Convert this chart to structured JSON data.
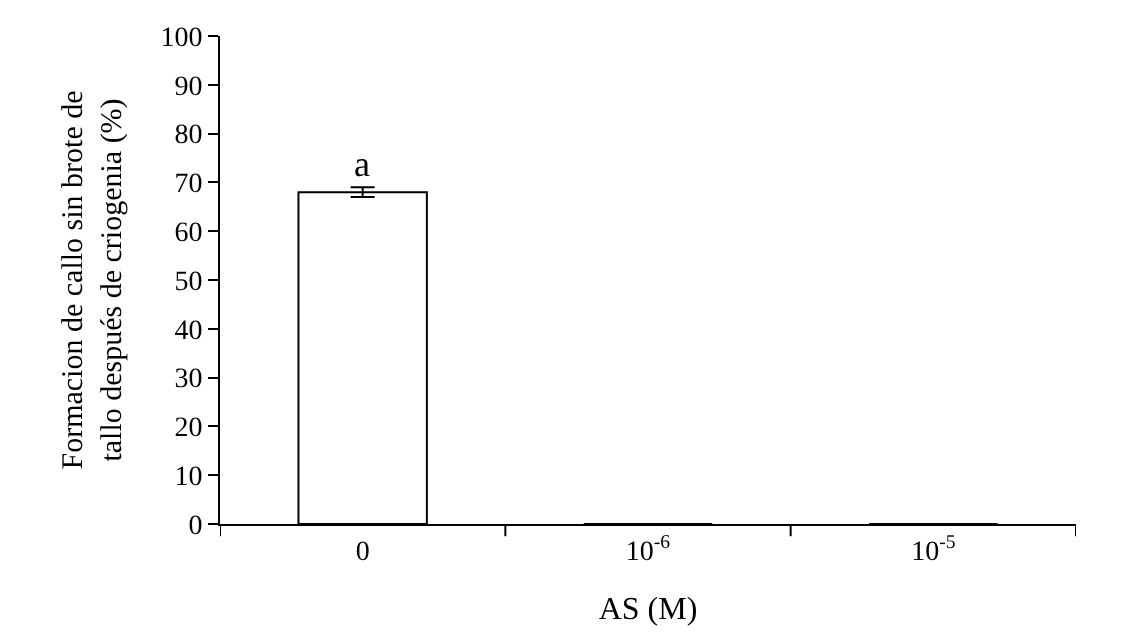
{
  "chart_data": {
    "type": "bar",
    "categories": [
      "0",
      "10$^{-6}$",
      "10$^{-5}$"
    ],
    "values": [
      68,
      0,
      0
    ],
    "errors": [
      1,
      null,
      null
    ],
    "color": "#ffffff",
    "xlabel": "AS (M)",
    "ylabel": "Formacion de callo sin brote de\ntallo después de criogenia (%)",
    "ylim": [
      0,
      100
    ],
    "yticks": [
      0,
      10,
      20,
      30,
      40,
      50,
      60,
      70,
      80,
      90,
      100
    ],
    "annotations": [
      {
        "text": "a",
        "x": "0",
        "y": 69
      }
    ],
    "grid": false,
    "legend": false
  }
}
